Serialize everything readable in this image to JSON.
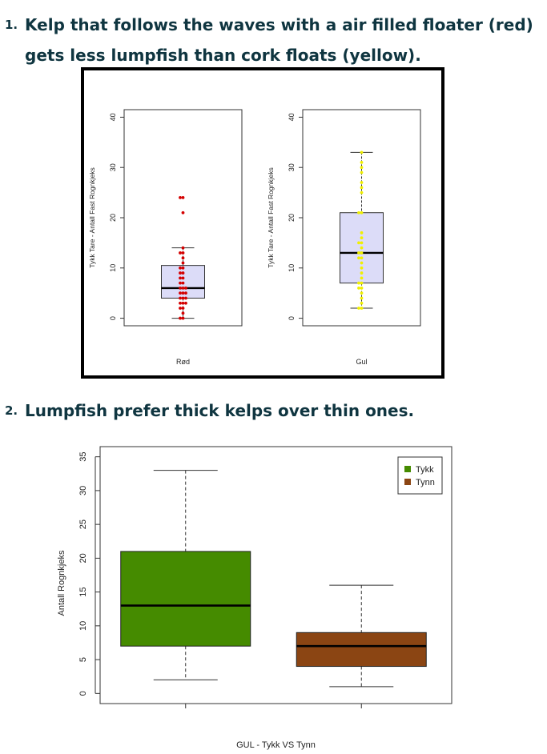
{
  "list": [
    {
      "number": "1.",
      "text": "Kelp that follows the waves with a air filled floater (red) gets less lumpfish than cork floats (yellow)."
    },
    {
      "number": "2.",
      "text": "Lumpfish prefer thick kelps over thin ones."
    }
  ],
  "chart_data": [
    {
      "type": "box",
      "panels": [
        {
          "xlabel": "Rød",
          "ylabel": "Tykk Tare - Antall Fast Rognkjeks",
          "ylim": [
            -1.5,
            41.5
          ],
          "yticks": [
            0,
            10,
            20,
            30,
            40
          ],
          "box": {
            "min": 0,
            "q1": 4,
            "median": 6,
            "q3": 10.5,
            "max": 14
          },
          "box_fill": "#dcdcf8",
          "point_color": "#d40000",
          "points": [
            0,
            0,
            1,
            2,
            2,
            3,
            3,
            3,
            4,
            4,
            4,
            5,
            5,
            5,
            6,
            6,
            6,
            7,
            7,
            8,
            8,
            9,
            9,
            10,
            10,
            11,
            12,
            13,
            13,
            14,
            21,
            24,
            24
          ]
        },
        {
          "xlabel": "Gul",
          "ylabel": "Tykk Tare - Antall Fast Rognkjeks",
          "ylim": [
            -1.5,
            41.5
          ],
          "yticks": [
            0,
            10,
            20,
            30,
            40
          ],
          "box": {
            "min": 2,
            "q1": 7,
            "median": 13,
            "q3": 21,
            "max": 33
          },
          "box_fill": "#dcdcf8",
          "point_color": "#f0f000",
          "points": [
            2,
            2,
            3,
            4,
            5,
            6,
            6,
            7,
            7,
            8,
            9,
            10,
            11,
            12,
            12,
            13,
            13,
            14,
            15,
            15,
            16,
            17,
            21,
            21,
            25,
            26,
            27,
            29,
            30,
            31,
            33
          ]
        }
      ]
    },
    {
      "type": "box",
      "xlabel": "GUL - Tykk VS Tynn",
      "ylabel": "Antall Rognkjeks",
      "ylim": [
        -1.5,
        36.5
      ],
      "yticks": [
        0,
        5,
        10,
        15,
        20,
        25,
        30,
        35
      ],
      "legend_position": "top-right",
      "series": [
        {
          "name": "Tykk",
          "color": "#458b00",
          "box": {
            "min": 2,
            "q1": 7,
            "median": 13,
            "q3": 21,
            "max": 33
          }
        },
        {
          "name": "Tynn",
          "color": "#8b4513",
          "box": {
            "min": 1,
            "q1": 4,
            "median": 7,
            "q3": 9,
            "max": 16
          }
        }
      ]
    }
  ]
}
